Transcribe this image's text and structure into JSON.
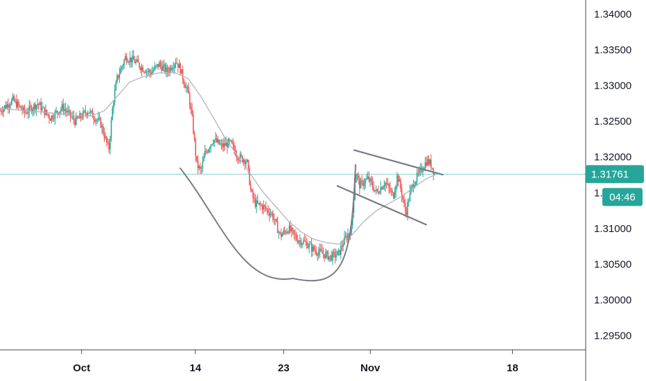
{
  "chart_data": {
    "type": "candlestick",
    "y_scale": "linear",
    "ylim": [
      1.293,
      1.342
    ],
    "y_ticks": [
      "1.29500",
      "1.30000",
      "1.30500",
      "1.31000",
      "1.31500",
      "1.32000",
      "1.32500",
      "1.33000",
      "1.33500",
      "1.34000"
    ],
    "x_ticks": [
      "Oct",
      "14",
      "23",
      "Nov",
      "18"
    ],
    "last_price": "1.31761",
    "last_price_value": 1.31761,
    "countdown": "04:46",
    "y_tick_hidden": "1.31500",
    "colors": {
      "up": "#26a69a",
      "down": "#ef5350",
      "ma": "#b2b5be",
      "drawing": "#787b86",
      "price_line": "#26a69a",
      "badge": "#26a69a",
      "axis_text": "#131722"
    },
    "price_path": [
      [
        0,
        1.3265
      ],
      [
        3,
        1.328
      ],
      [
        6,
        1.3262
      ],
      [
        9,
        1.3275
      ],
      [
        12,
        1.3255
      ],
      [
        15,
        1.327
      ],
      [
        18,
        1.325
      ],
      [
        21,
        1.3265
      ],
      [
        24,
        1.3248
      ],
      [
        26,
        1.321
      ],
      [
        27,
        1.3275
      ],
      [
        28,
        1.331
      ],
      [
        30,
        1.334
      ],
      [
        32,
        1.3335
      ],
      [
        34,
        1.3325
      ],
      [
        36,
        1.3318
      ],
      [
        38,
        1.333
      ],
      [
        40,
        1.332
      ],
      [
        42,
        1.3335
      ],
      [
        43,
        1.3325
      ],
      [
        44,
        1.3305
      ],
      [
        45,
        1.329
      ],
      [
        46,
        1.325
      ],
      [
        47,
        1.319
      ],
      [
        48,
        1.318
      ],
      [
        49,
        1.3205
      ],
      [
        51,
        1.3225
      ],
      [
        53,
        1.3215
      ],
      [
        55,
        1.322
      ],
      [
        57,
        1.32
      ],
      [
        59,
        1.3195
      ],
      [
        60,
        1.315
      ],
      [
        61,
        1.3135
      ],
      [
        63,
        1.313
      ],
      [
        65,
        1.312
      ],
      [
        67,
        1.309
      ],
      [
        69,
        1.31
      ],
      [
        71,
        1.3085
      ],
      [
        73,
        1.308
      ],
      [
        75,
        1.307
      ],
      [
        77,
        1.3065
      ],
      [
        79,
        1.306
      ],
      [
        81,
        1.3065
      ],
      [
        82,
        1.308
      ],
      [
        84,
        1.31
      ],
      [
        85,
        1.318
      ],
      [
        86,
        1.316
      ],
      [
        88,
        1.317
      ],
      [
        90,
        1.315
      ],
      [
        92,
        1.3165
      ],
      [
        94,
        1.3145
      ],
      [
        95,
        1.3175
      ],
      [
        96,
        1.315
      ],
      [
        97,
        1.312
      ],
      [
        98,
        1.315
      ],
      [
        99,
        1.3165
      ],
      [
        100,
        1.3175
      ],
      [
        101,
        1.3185
      ],
      [
        102,
        1.3195
      ],
      [
        103,
        1.319
      ],
      [
        104,
        1.3176
      ]
    ],
    "ma_path": [
      [
        0,
        1.3268
      ],
      [
        6,
        1.3265
      ],
      [
        12,
        1.3262
      ],
      [
        18,
        1.3258
      ],
      [
        22,
        1.3258
      ],
      [
        25,
        1.3265
      ],
      [
        28,
        1.3285
      ],
      [
        31,
        1.3305
      ],
      [
        34,
        1.3312
      ],
      [
        38,
        1.3318
      ],
      [
        42,
        1.3318
      ],
      [
        45,
        1.331
      ],
      [
        48,
        1.3285
      ],
      [
        51,
        1.3255
      ],
      [
        54,
        1.3225
      ],
      [
        57,
        1.32
      ],
      [
        60,
        1.3175
      ],
      [
        63,
        1.315
      ],
      [
        66,
        1.313
      ],
      [
        69,
        1.311
      ],
      [
        72,
        1.3095
      ],
      [
        75,
        1.3085
      ],
      [
        78,
        1.308
      ],
      [
        81,
        1.3078
      ],
      [
        84,
        1.309
      ],
      [
        87,
        1.311
      ],
      [
        90,
        1.3125
      ],
      [
        93,
        1.3135
      ],
      [
        96,
        1.3145
      ],
      [
        99,
        1.3158
      ],
      [
        102,
        1.317
      ],
      [
        104,
        1.3175
      ]
    ],
    "drawings": {
      "cup_curve": [
        [
          43,
          1.3185
        ],
        [
          53,
          1.311
        ],
        [
          70,
          1.303
        ],
        [
          82,
          1.305
        ],
        [
          85,
          1.319
        ]
      ],
      "channel_upper": [
        [
          84.5,
          1.321
        ],
        [
          106,
          1.3175
        ]
      ],
      "channel_lower": [
        [
          80.5,
          1.316
        ],
        [
          102,
          1.3105
        ]
      ]
    },
    "x_tick_positions": [
      19.5,
      46.7,
      67.8,
      88.5,
      122.5
    ],
    "x_total": 140
  }
}
